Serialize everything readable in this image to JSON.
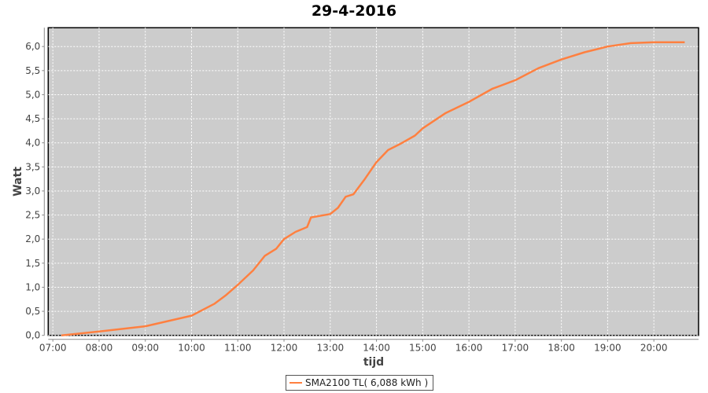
{
  "chart_data": {
    "type": "line",
    "title": "29-4-2016",
    "xlabel": "tijd",
    "ylabel": "Watt",
    "xlim": [
      "06:54",
      "20:58"
    ],
    "ylim": [
      0,
      6.39
    ],
    "x_ticks": [
      "07:00",
      "08:00",
      "09:00",
      "10:00",
      "11:00",
      "12:00",
      "13:00",
      "14:00",
      "15:00",
      "16:00",
      "17:00",
      "18:00",
      "19:00",
      "20:00"
    ],
    "y_ticks": [
      "0,0",
      "0,5",
      "1,0",
      "1,5",
      "2,0",
      "2,5",
      "3,0",
      "3,5",
      "4,0",
      "4,5",
      "5,0",
      "5,5",
      "6,0"
    ],
    "grid": true,
    "background": "#cccccc",
    "legend_position": "bottom",
    "series": [
      {
        "name": "SMA2100 TL( 6,088 kWh )",
        "color": "#ff8040",
        "x": [
          "07:11",
          "08:00",
          "09:00",
          "10:00",
          "10:30",
          "10:45",
          "11:00",
          "11:20",
          "11:35",
          "11:50",
          "12:00",
          "12:15",
          "12:30",
          "12:35",
          "13:00",
          "13:10",
          "13:20",
          "13:30",
          "13:45",
          "14:00",
          "14:15",
          "14:30",
          "14:50",
          "15:00",
          "15:30",
          "16:00",
          "16:30",
          "17:00",
          "17:30",
          "18:00",
          "18:30",
          "19:00",
          "19:30",
          "20:00",
          "20:40"
        ],
        "y": [
          0.0,
          0.08,
          0.19,
          0.41,
          0.66,
          0.84,
          1.05,
          1.35,
          1.65,
          1.8,
          2.0,
          2.15,
          2.25,
          2.45,
          2.52,
          2.65,
          2.88,
          2.93,
          3.25,
          3.6,
          3.85,
          3.97,
          4.15,
          4.3,
          4.62,
          4.85,
          5.12,
          5.3,
          5.55,
          5.73,
          5.88,
          6.0,
          6.07,
          6.09,
          6.09
        ]
      }
    ]
  }
}
